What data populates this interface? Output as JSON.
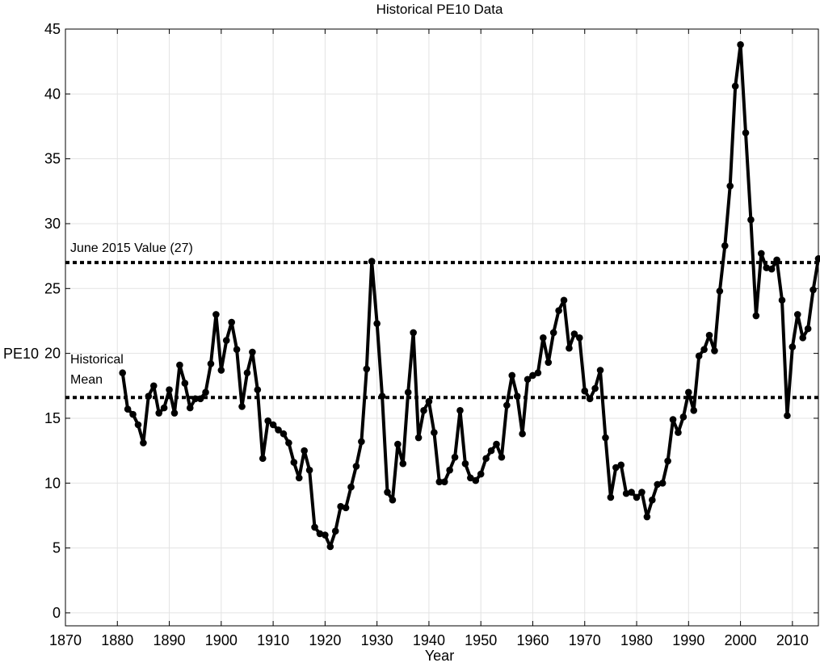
{
  "chart_data": {
    "type": "line",
    "title": "Historical PE10 Data",
    "xlabel": "Year",
    "ylabel": "PE10",
    "xlim": [
      1870,
      2015
    ],
    "ylim": [
      -1,
      45
    ],
    "xticks": [
      1870,
      1880,
      1890,
      1900,
      1910,
      1920,
      1930,
      1940,
      1950,
      1960,
      1970,
      1980,
      1990,
      2000,
      2010
    ],
    "yticks": [
      0,
      5,
      10,
      15,
      20,
      25,
      30,
      35,
      40,
      45
    ],
    "grid": true,
    "line_color": "#000000",
    "series": [
      {
        "x": [
          1881,
          1882,
          1883,
          1884,
          1885,
          1886,
          1887,
          1888,
          1889,
          1890,
          1891,
          1892,
          1893,
          1894,
          1895,
          1896,
          1897,
          1898,
          1899,
          1900,
          1901,
          1902,
          1903,
          1904,
          1905,
          1906,
          1907,
          1908,
          1909,
          1910,
          1911,
          1912,
          1913,
          1914,
          1915,
          1916,
          1917,
          1918,
          1919,
          1920,
          1921,
          1922,
          1923,
          1924,
          1925,
          1926,
          1927,
          1928,
          1929,
          1930,
          1931,
          1932,
          1933,
          1934,
          1935,
          1936,
          1937,
          1938,
          1939,
          1940,
          1941,
          1942,
          1943,
          1944,
          1945,
          1946,
          1947,
          1948,
          1949,
          1950,
          1951,
          1952,
          1953,
          1954,
          1955,
          1956,
          1957,
          1958,
          1959,
          1960,
          1961,
          1962,
          1963,
          1964,
          1965,
          1966,
          1967,
          1968,
          1969,
          1970,
          1971,
          1972,
          1973,
          1974,
          1975,
          1976,
          1977,
          1978,
          1979,
          1980,
          1981,
          1982,
          1983,
          1984,
          1985,
          1986,
          1987,
          1988,
          1989,
          1990,
          1991,
          1992,
          1993,
          1994,
          1995,
          1996,
          1997,
          1998,
          1999,
          2000,
          2001,
          2002,
          2003,
          2004,
          2005,
          2006,
          2007,
          2008,
          2009,
          2010,
          2011,
          2012,
          2013,
          2014,
          2015
        ],
        "values": [
          18.5,
          15.7,
          15.3,
          14.5,
          13.1,
          16.7,
          17.5,
          15.4,
          15.8,
          17.2,
          15.4,
          19.1,
          17.7,
          15.8,
          16.5,
          16.5,
          17.0,
          19.2,
          23.0,
          18.7,
          21.0,
          22.4,
          20.3,
          15.9,
          18.5,
          20.1,
          17.2,
          11.9,
          14.8,
          14.5,
          14.1,
          13.8,
          13.1,
          11.6,
          10.4,
          12.5,
          11.0,
          6.6,
          6.1,
          6.0,
          5.1,
          6.3,
          8.2,
          8.1,
          9.7,
          11.3,
          13.2,
          18.8,
          27.1,
          22.3,
          16.7,
          9.3,
          8.7,
          13.0,
          11.5,
          17.0,
          21.6,
          13.5,
          15.6,
          16.3,
          13.9,
          10.1,
          10.1,
          11.0,
          12.0,
          15.6,
          11.5,
          10.4,
          10.2,
          10.7,
          11.9,
          12.5,
          13.0,
          12.0,
          16.0,
          18.3,
          16.7,
          13.8,
          18.0,
          18.3,
          18.5,
          21.2,
          19.3,
          21.6,
          23.3,
          24.1,
          20.4,
          21.5,
          21.2,
          17.1,
          16.5,
          17.3,
          18.7,
          13.5,
          8.9,
          11.2,
          11.4,
          9.2,
          9.3,
          8.9,
          9.3,
          7.4,
          8.7,
          9.9,
          10.0,
          11.7,
          14.9,
          13.9,
          15.1,
          17.0,
          15.6,
          19.8,
          20.3,
          21.4,
          20.2,
          24.8,
          28.3,
          32.9,
          40.6,
          43.8,
          37.0,
          30.3,
          22.9,
          27.7,
          26.6,
          26.5,
          27.2,
          24.1,
          15.2,
          20.5,
          23.0,
          21.2,
          21.9,
          24.9,
          27.3
        ]
      }
    ],
    "reference_lines": [
      {
        "y": 27.0,
        "label": "June 2015 Value (27)"
      },
      {
        "y": 16.6,
        "label_lines": [
          "Historical",
          "Mean"
        ]
      }
    ]
  }
}
